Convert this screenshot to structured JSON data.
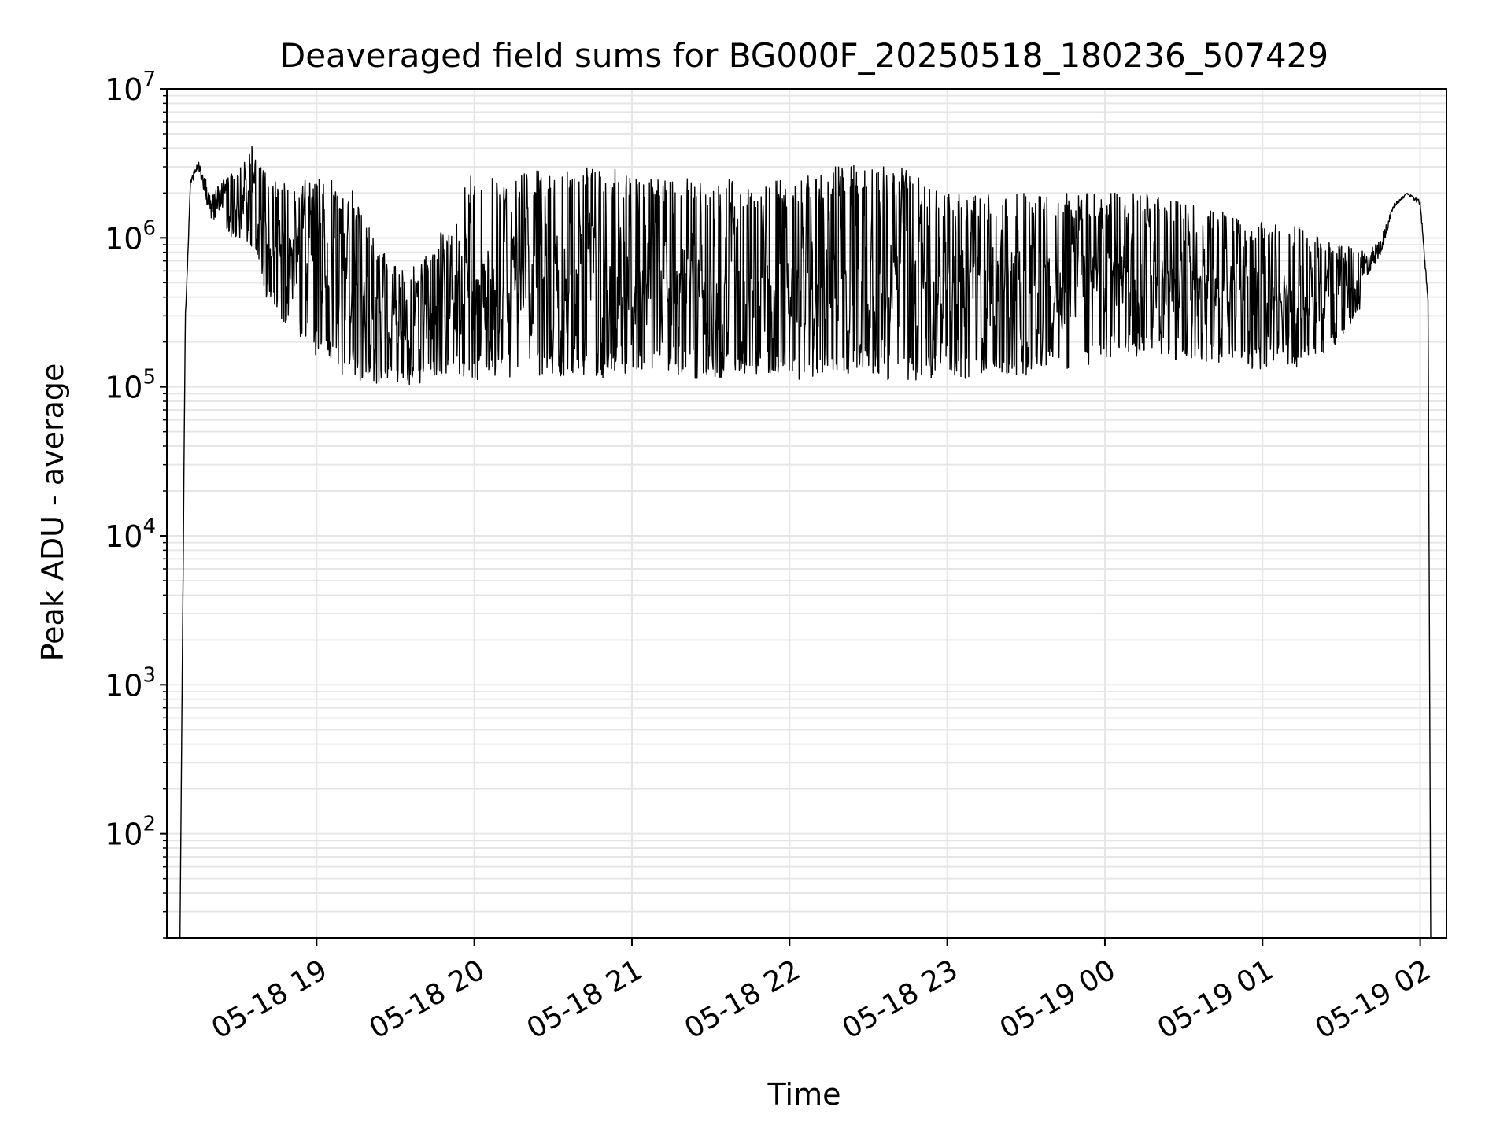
{
  "chart_data": {
    "type": "line",
    "title": "Deaveraged field sums for BG000F_20250518_180236_507429",
    "xlabel": "Time",
    "ylabel": "Peak ADU - average",
    "xscale": "time",
    "yscale": "log",
    "xlim": [
      "2025-05-18 18:03",
      "2025-05-19 02:10"
    ],
    "ylim": [
      20,
      10000000
    ],
    "grid": true,
    "legend": "none",
    "line_color": "#000000",
    "grid_color": "#e6e6e6",
    "x_ticks": [
      {
        "value": "2025-05-18 19:00",
        "label": "05-18 19"
      },
      {
        "value": "2025-05-18 20:00",
        "label": "05-18 20"
      },
      {
        "value": "2025-05-18 21:00",
        "label": "05-18 21"
      },
      {
        "value": "2025-05-18 22:00",
        "label": "05-18 22"
      },
      {
        "value": "2025-05-18 23:00",
        "label": "05-18 23"
      },
      {
        "value": "2025-05-19 00:00",
        "label": "05-19 00"
      },
      {
        "value": "2025-05-19 01:00",
        "label": "05-19 01"
      },
      {
        "value": "2025-05-19 02:00",
        "label": "05-19 02"
      }
    ],
    "y_ticks": [
      {
        "value": 100,
        "base": "10",
        "exp": "2"
      },
      {
        "value": 1000,
        "base": "10",
        "exp": "3"
      },
      {
        "value": 10000,
        "base": "10",
        "exp": "4"
      },
      {
        "value": 100000,
        "base": "10",
        "exp": "5"
      },
      {
        "value": 1000000,
        "base": "10",
        "exp": "6"
      },
      {
        "value": 10000000,
        "base": "10",
        "exp": "7"
      }
    ],
    "series": [
      {
        "x": [
          "2025-05-18 18:08",
          "2025-05-18 18:10",
          "2025-05-18 18:12",
          "2025-05-18 18:15",
          "2025-05-18 18:20",
          "2025-05-18 18:25",
          "2025-05-18 18:30",
          "2025-05-18 18:35",
          "2025-05-18 18:40",
          "2025-05-18 18:45",
          "2025-05-18 18:55",
          "2025-05-18 19:05",
          "2025-05-18 19:15",
          "2025-05-18 19:25",
          "2025-05-18 19:35",
          "2025-05-18 19:45",
          "2025-05-18 20:00",
          "2025-05-18 20:15",
          "2025-05-18 20:30",
          "2025-05-18 20:45",
          "2025-05-18 21:00",
          "2025-05-18 21:15",
          "2025-05-18 21:30",
          "2025-05-18 21:45",
          "2025-05-18 22:00",
          "2025-05-18 22:15",
          "2025-05-18 22:30",
          "2025-05-18 22:45",
          "2025-05-18 23:00",
          "2025-05-18 23:15",
          "2025-05-18 23:30",
          "2025-05-18 23:45",
          "2025-05-19 00:00",
          "2025-05-19 00:15",
          "2025-05-19 00:30",
          "2025-05-19 00:45",
          "2025-05-19 01:00",
          "2025-05-19 01:15",
          "2025-05-19 01:30",
          "2025-05-19 01:40",
          "2025-05-19 01:45",
          "2025-05-19 01:50",
          "2025-05-19 01:55",
          "2025-05-19 02:00",
          "2025-05-19 02:03",
          "2025-05-19 02:04"
        ],
        "y_upper": [
          20,
          300000,
          2500000,
          3300000,
          2000000,
          2500000,
          3000000,
          4500000,
          3000000,
          2500000,
          2500000,
          2500000,
          2000000,
          800000,
          600000,
          900000,
          3000000,
          3000000,
          3000000,
          3000000,
          2800000,
          2500000,
          2500000,
          2500000,
          2500000,
          3000000,
          3200000,
          3000000,
          2000000,
          2000000,
          2000000,
          2000000,
          2000000,
          2000000,
          1800000,
          1500000,
          1300000,
          1200000,
          900000,
          800000,
          1000000,
          1700000,
          2000000,
          1800000,
          400000,
          20
        ],
        "y_lower": [
          20,
          200000,
          2000000,
          2500000,
          800000,
          1000000,
          1000000,
          900000,
          400000,
          300000,
          200000,
          130000,
          110000,
          100000,
          100000,
          110000,
          110000,
          110000,
          110000,
          110000,
          120000,
          120000,
          110000,
          110000,
          110000,
          120000,
          110000,
          110000,
          110000,
          110000,
          120000,
          130000,
          150000,
          160000,
          150000,
          140000,
          130000,
          130000,
          200000,
          400000,
          600000,
          1500000,
          1900000,
          1500000,
          300000,
          20
        ]
      }
    ]
  }
}
